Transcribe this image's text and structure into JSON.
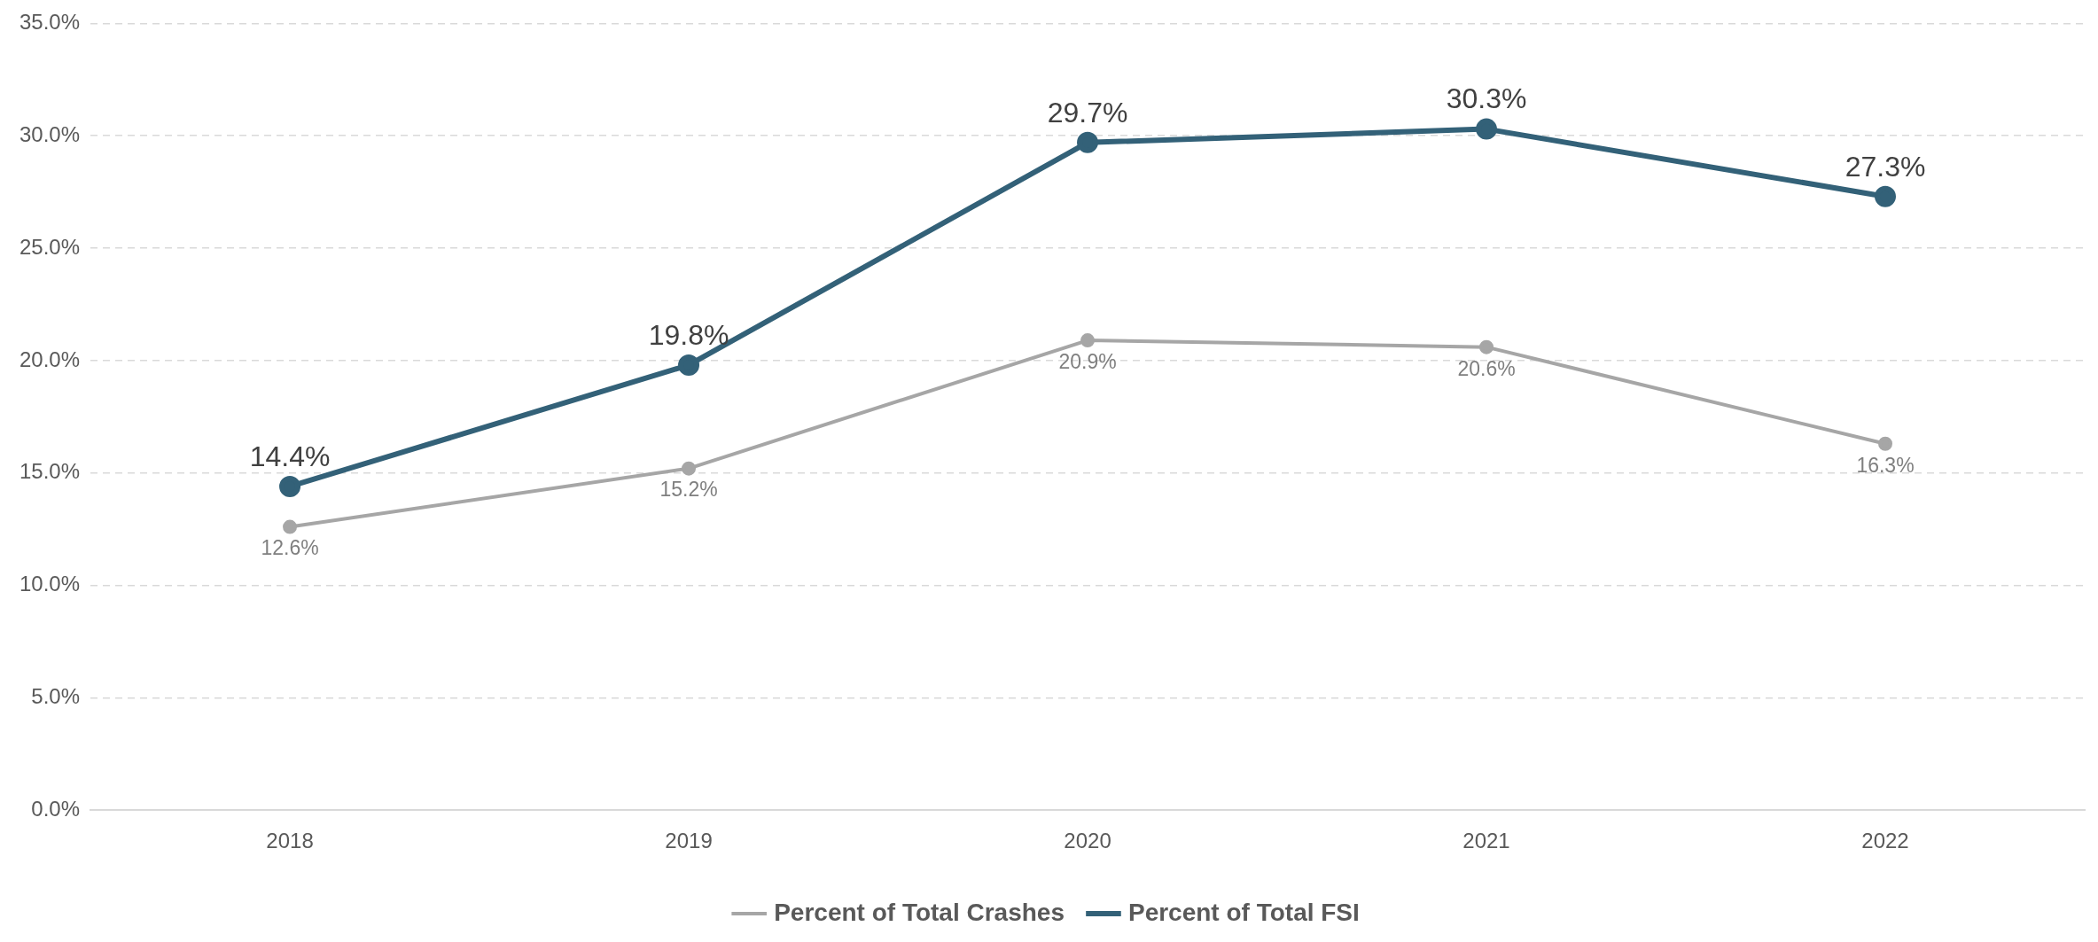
{
  "chart_data": {
    "type": "line",
    "categories": [
      "2018",
      "2019",
      "2020",
      "2021",
      "2022"
    ],
    "series": [
      {
        "name": "Percent of Total Crashes",
        "color": "#a6a6a6",
        "values": [
          12.6,
          15.2,
          20.9,
          20.6,
          16.3
        ],
        "value_labels": [
          "12.6%",
          "15.2%",
          "20.9%",
          "20.6%",
          "16.3%"
        ]
      },
      {
        "name": "Percent of Total FSI",
        "color": "#336178",
        "values": [
          14.4,
          19.8,
          29.7,
          30.3,
          27.3
        ],
        "value_labels": [
          "14.4%",
          "19.8%",
          "29.7%",
          "30.3%",
          "27.3%"
        ]
      }
    ],
    "ylim": [
      0,
      35
    ],
    "yticks": [
      {
        "value": 0,
        "label": "0.0%"
      },
      {
        "value": 5,
        "label": "5.0%"
      },
      {
        "value": 10,
        "label": "10.0%"
      },
      {
        "value": 15,
        "label": "15.0%"
      },
      {
        "value": 20,
        "label": "20.0%"
      },
      {
        "value": 25,
        "label": "25.0%"
      },
      {
        "value": 30,
        "label": "30.0%"
      },
      {
        "value": 35,
        "label": "35.0%"
      }
    ],
    "grid": "y",
    "legend": "bottom",
    "marker": "circle",
    "line_style": "solid"
  }
}
